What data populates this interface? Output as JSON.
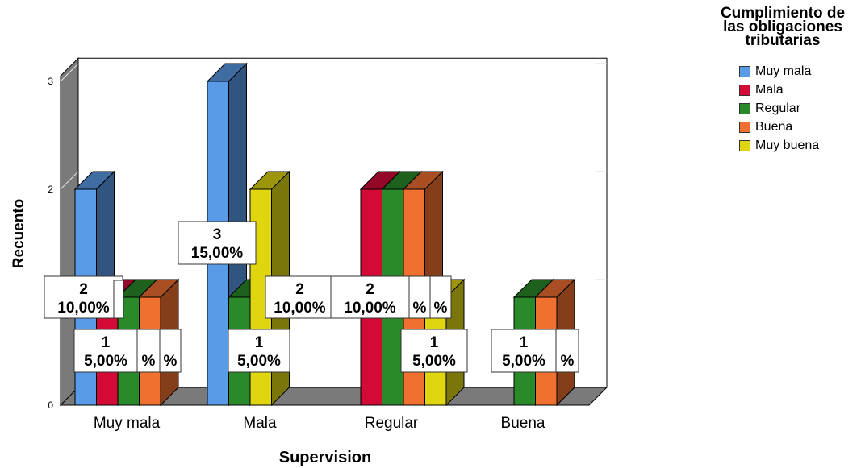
{
  "chart_data": {
    "type": "bar",
    "xlabel": "Supervision",
    "ylabel": "Recuento",
    "ylim": [
      0,
      3
    ],
    "y_ticks": [
      "0",
      "1",
      "2",
      "3"
    ],
    "categories": [
      "Muy mala",
      "Mala",
      "Regular",
      "Buena"
    ],
    "legend": {
      "title": "Cumplimiento de las obligaciones tributarias",
      "placement": "right"
    },
    "series": [
      {
        "name": "Muy mala",
        "color": "#5a9be8",
        "values": [
          2,
          3,
          0,
          0
        ]
      },
      {
        "name": "Mala",
        "color": "#d40a36",
        "values": [
          1,
          0,
          2,
          0
        ]
      },
      {
        "name": "Regular",
        "color": "#2a8a2a",
        "values": [
          1,
          1,
          2,
          1
        ]
      },
      {
        "name": "Buena",
        "color": "#f07030",
        "values": [
          1,
          0,
          2,
          1
        ]
      },
      {
        "name": "Muy buena",
        "color": "#e0d610",
        "values": [
          0,
          2,
          1,
          0
        ]
      }
    ],
    "data_labels": [
      {
        "category": "Muy mala",
        "series": "Muy mala",
        "count": "2",
        "percent": "10,00%"
      },
      {
        "category": "Muy mala",
        "series": "Mala",
        "count": "",
        "percent": ""
      },
      {
        "category": "Muy mala",
        "series": "Regular",
        "count": "1",
        "percent": "5,00%"
      },
      {
        "category": "Muy mala",
        "series": "Buena",
        "count": "",
        "percent": "%"
      },
      {
        "category": "Muy mala",
        "series": "Buena",
        "count": "",
        "percent": "%"
      },
      {
        "category": "Mala",
        "series": "Muy mala",
        "count": "3",
        "percent": "15,00%"
      },
      {
        "category": "Mala",
        "series": "Regular",
        "count": "1",
        "percent": "5,00%"
      },
      {
        "category": "Mala",
        "series": "Muy buena",
        "count": "2",
        "percent": "10,00%"
      },
      {
        "category": "Regular",
        "series": "Mala",
        "count": "2",
        "percent": "10,00%"
      },
      {
        "category": "Regular",
        "series": "Regular",
        "count": "",
        "percent": "%"
      },
      {
        "category": "Regular",
        "series": "Buena",
        "count": "",
        "percent": "%"
      },
      {
        "category": "Regular",
        "series": "Muy buena",
        "count": "1",
        "percent": "5,00%"
      },
      {
        "category": "Buena",
        "series": "Regular",
        "count": "1",
        "percent": "5,00%"
      },
      {
        "category": "Buena",
        "series": "Buena",
        "count": "",
        "percent": "%"
      }
    ]
  }
}
